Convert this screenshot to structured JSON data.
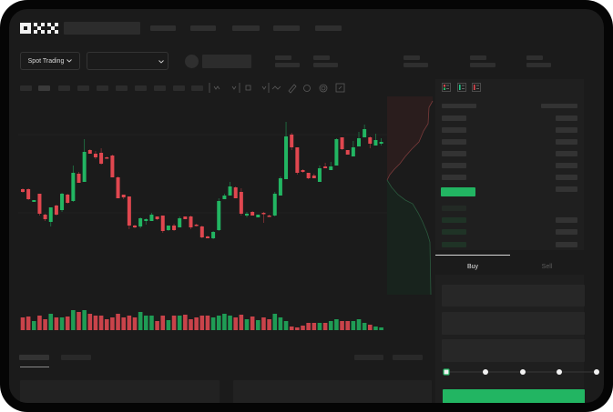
{
  "header": {
    "logo_text": "OKX",
    "market_selector": {
      "label": "Spot Trading",
      "icon": "chevron-down-icon"
    },
    "pair_dropdown": {
      "icon": "chevron-down-icon"
    }
  },
  "chart_toolbar": {
    "icons": [
      "indicator-icon",
      "chevron-down-icon",
      "time-icon",
      "chevron-down-icon",
      "line-icon",
      "ruler-icon",
      "camera-icon",
      "settings-icon",
      "fullscreen-icon"
    ]
  },
  "order_book": {
    "view_icons": [
      "orderbook-both-icon",
      "orderbook-bids-icon",
      "orderbook-asks-icon"
    ]
  },
  "trade_form": {
    "tabs": [
      {
        "label": "Buy",
        "active": true
      },
      {
        "label": "Sell",
        "active": false
      }
    ],
    "slider": {
      "value_percent": 0,
      "stops": [
        0,
        25,
        50,
        75,
        100
      ]
    }
  },
  "colors": {
    "up": "#22b562",
    "down": "#e0474f",
    "background": "#1b1b1b",
    "accent": "#22b562"
  },
  "chart_data": {
    "type": "candlestick",
    "grid": true,
    "candles": [
      [
        77,
        78,
        73,
        74
      ],
      [
        77,
        78,
        65,
        66
      ],
      [
        63,
        65,
        63,
        65
      ],
      [
        72,
        72,
        48,
        50
      ],
      [
        49,
        50,
        42,
        44
      ],
      [
        41,
        57,
        36,
        57
      ],
      [
        59,
        60,
        48,
        49
      ],
      [
        54,
        73,
        52,
        72
      ],
      [
        71,
        72,
        61,
        62
      ],
      [
        64,
        103,
        63,
        95
      ],
      [
        94,
        96,
        84,
        84
      ],
      [
        85,
        132,
        85,
        118
      ],
      [
        120,
        121,
        116,
        116
      ],
      [
        116,
        119,
        110,
        112
      ],
      [
        117,
        122,
        104,
        105
      ],
      [
        112,
        113,
        111,
        111
      ],
      [
        114,
        115,
        90,
        90
      ],
      [
        90,
        91,
        67,
        67
      ],
      [
        71,
        71,
        66,
        68
      ],
      [
        69,
        69,
        33,
        37
      ],
      [
        37,
        38,
        34,
        35
      ],
      [
        36,
        46,
        34,
        45
      ],
      [
        42,
        45,
        38,
        44
      ],
      [
        42,
        51,
        42,
        49
      ],
      [
        47,
        47,
        43,
        44
      ],
      [
        48,
        48,
        29,
        31
      ],
      [
        32,
        37,
        31,
        37
      ],
      [
        37,
        39,
        31,
        32
      ],
      [
        35,
        47,
        35,
        45
      ],
      [
        47,
        47,
        44,
        44
      ],
      [
        47,
        48,
        33,
        35
      ],
      [
        38,
        39,
        36,
        37
      ],
      [
        36,
        37,
        23,
        24
      ],
      [
        25,
        26,
        23,
        23
      ],
      [
        23,
        31,
        22,
        30
      ],
      [
        32,
        67,
        31,
        64
      ],
      [
        66,
        72,
        66,
        70
      ],
      [
        70,
        85,
        70,
        80
      ],
      [
        79,
        80,
        67,
        67
      ],
      [
        74,
        78,
        48,
        50
      ],
      [
        48,
        52,
        46,
        50
      ],
      [
        52,
        53,
        48,
        48
      ],
      [
        46,
        49,
        46,
        49
      ],
      [
        51,
        52,
        40,
        50
      ],
      [
        48,
        49,
        47,
        47
      ],
      [
        48,
        74,
        47,
        72
      ],
      [
        70,
        91,
        70,
        89
      ],
      [
        88,
        151,
        88,
        135
      ],
      [
        137,
        139,
        120,
        123
      ],
      [
        123,
        123,
        93,
        95
      ],
      [
        98,
        99,
        95,
        96
      ],
      [
        95,
        95,
        88,
        89
      ],
      [
        92,
        94,
        89,
        89
      ],
      [
        85,
        103,
        85,
        100
      ],
      [
        102,
        106,
        100,
        100
      ],
      [
        98,
        107,
        98,
        102
      ],
      [
        103,
        133,
        103,
        132
      ],
      [
        134,
        134,
        120,
        121
      ],
      [
        120,
        120,
        115,
        115
      ],
      [
        113,
        130,
        113,
        123
      ],
      [
        124,
        140,
        124,
        133
      ],
      [
        134,
        148,
        134,
        143
      ],
      [
        134,
        135,
        122,
        127
      ],
      [
        125,
        138,
        125,
        131
      ],
      [
        127,
        133,
        125,
        129
      ]
    ],
    "volumes": [
      14,
      15,
      10,
      16,
      12,
      18,
      14,
      14,
      15,
      22,
      20,
      22,
      18,
      16,
      16,
      12,
      14,
      18,
      14,
      16,
      14,
      20,
      16,
      16,
      10,
      16,
      11,
      16,
      16,
      17,
      12,
      14,
      16,
      16,
      14,
      16,
      18,
      16,
      14,
      17,
      12,
      15,
      11,
      14,
      12,
      18,
      14,
      10,
      4,
      3,
      5,
      8,
      8,
      8,
      8,
      10,
      12,
      10,
      10,
      10,
      12,
      8,
      6,
      4,
      3
    ],
    "ylim": [
      10,
      160
    ]
  }
}
